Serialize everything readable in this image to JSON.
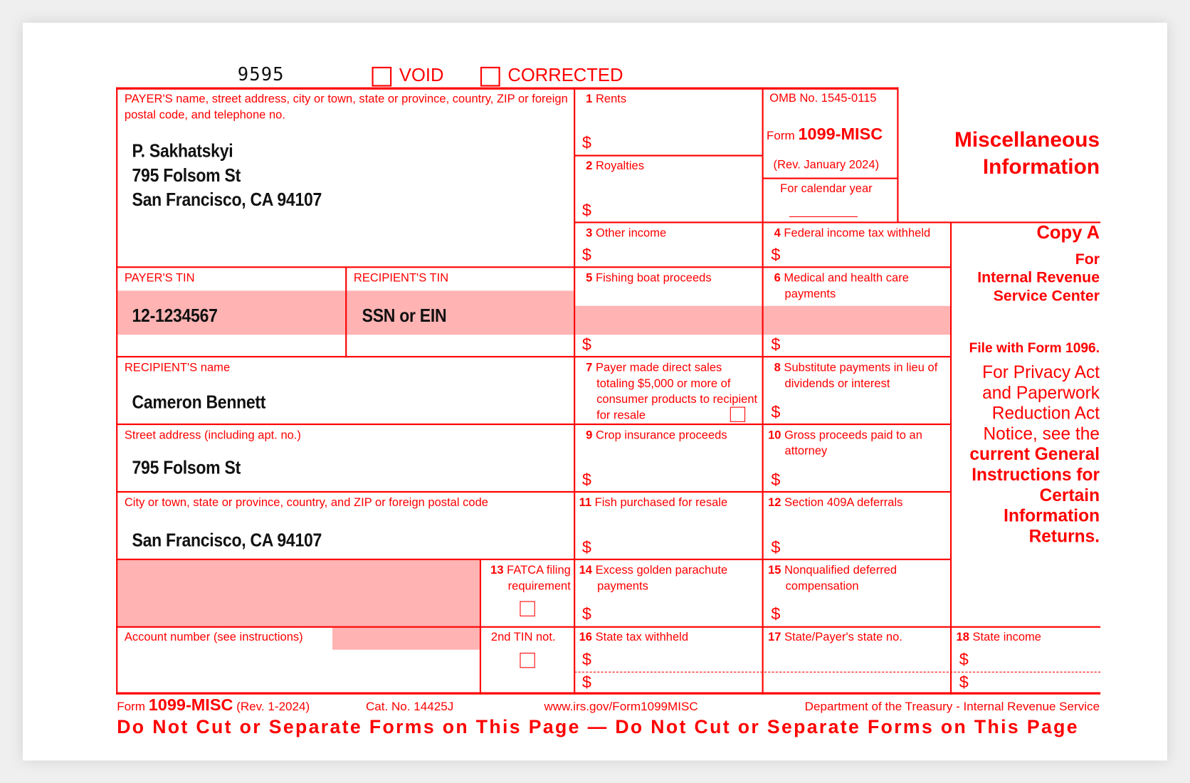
{
  "header": {
    "form_code": "9595",
    "void_label": "VOID",
    "corrected_label": "CORRECTED"
  },
  "payer": {
    "label": "PAYER'S name, street address, city or town, state or province, country, ZIP or foreign postal code, and telephone no.",
    "name": "P. Sakhatskyi",
    "street": "795 Folsom St",
    "city": "San Francisco, CA 94107",
    "tin_label": "PAYER'S TIN",
    "tin": "12-1234567"
  },
  "recipient": {
    "tin_label": "RECIPIENT'S TIN",
    "tin": "SSN or EIN",
    "name_label": "RECIPIENT'S name",
    "name": "Cameron Bennett",
    "street_label": "Street address (including apt. no.)",
    "street": "795 Folsom St",
    "city_label": "City or town, state or province, country, and ZIP or foreign postal code",
    "city": "San Francisco, CA 94107"
  },
  "boxes": {
    "b1": {
      "num": "1",
      "label": "Rents"
    },
    "b2": {
      "num": "2",
      "label": "Royalties"
    },
    "b3": {
      "num": "3",
      "label": "Other income"
    },
    "b4": {
      "num": "4",
      "label": "Federal income tax withheld"
    },
    "b5": {
      "num": "5",
      "label": "Fishing boat proceeds"
    },
    "b6": {
      "num": "6",
      "label": "Medical and health care payments"
    },
    "b7": {
      "num": "7",
      "label": "Payer made direct sales totaling $5,000 or more of consumer products to recipient for resale"
    },
    "b8": {
      "num": "8",
      "label": "Substitute payments in lieu of dividends or interest"
    },
    "b9": {
      "num": "9",
      "label": "Crop insurance proceeds"
    },
    "b10": {
      "num": "10",
      "label": "Gross proceeds paid to an attorney"
    },
    "b11": {
      "num": "11",
      "label": "Fish purchased for resale"
    },
    "b12": {
      "num": "12",
      "label": "Section 409A deferrals"
    },
    "b13": {
      "num": "13",
      "label": "FATCA filing requirement"
    },
    "b14": {
      "num": "14",
      "label": "Excess golden parachute payments"
    },
    "b15": {
      "num": "15",
      "label": "Nonqualified deferred compensation"
    },
    "b16": {
      "num": "16",
      "label": "State tax withheld"
    },
    "b17": {
      "num": "17",
      "label": "State/Payer's state no."
    },
    "b18": {
      "num": "18",
      "label": "State income"
    },
    "account_label": "Account number (see instructions)",
    "second_tin_label": "2nd TIN not.",
    "dollar": "$"
  },
  "omb": {
    "omb_no": "OMB No. 1545-0115",
    "form_prefix": "Form",
    "form_name": "1099-MISC",
    "rev": "(Rev. January 2024)",
    "calendar_year": "For calendar year"
  },
  "side": {
    "title_line1": "Miscellaneous",
    "title_line2": "Information",
    "copy": "Copy A",
    "for": "For",
    "irs_line1": "Internal Revenue",
    "irs_line2": "Service Center",
    "file_with": "File with Form 1096.",
    "privacy_lines": [
      "For Privacy Act",
      "and Paperwork",
      "Reduction Act",
      "Notice, see the"
    ],
    "bold_lines": [
      "current General",
      "Instructions for",
      "Certain",
      "Information",
      "Returns."
    ]
  },
  "footer": {
    "form_prefix": "Form",
    "form_name": "1099-MISC",
    "rev": "(Rev. 1-2024)",
    "cat": "Cat. No. 14425J",
    "url": "www.irs.gov/Form1099MISC",
    "dept": "Department of the Treasury - Internal Revenue Service",
    "warning": "Do Not Cut or Separate Forms on This Page — Do Not Cut or Separate Forms on This Page"
  },
  "colors": {
    "form_red": "#ff0000",
    "shade": "#ffb3b3"
  }
}
